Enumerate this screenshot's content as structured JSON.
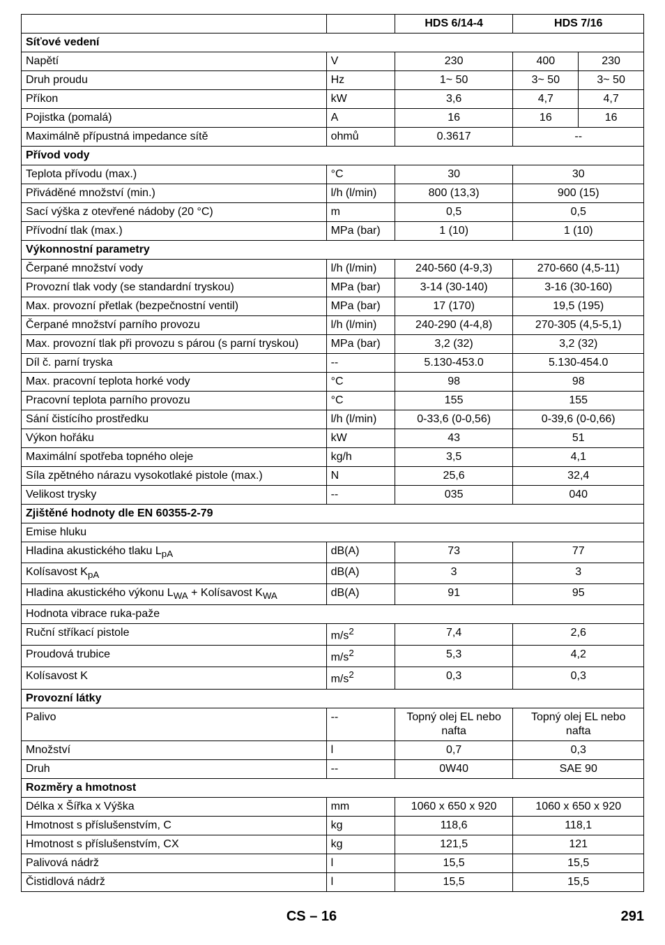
{
  "table": {
    "header": {
      "col3": "HDS 6/14-4",
      "col4": "HDS 7/16"
    },
    "sections": [
      {
        "title": "Síťové vedení",
        "rows": [
          {
            "label": "Napětí",
            "unit": "V",
            "v1": "230",
            "v2a": "400",
            "v2b": "230",
            "split": true
          },
          {
            "label": "Druh proudu",
            "unit": "Hz",
            "v1": "1~ 50",
            "v2a": "3~ 50",
            "v2b": "3~ 50",
            "split": true
          },
          {
            "label": "Příkon",
            "unit": "kW",
            "v1": "3,6",
            "v2a": "4,7",
            "v2b": "4,7",
            "split": true
          },
          {
            "label": "Pojistka (pomalá)",
            "unit": "A",
            "v1": "16",
            "v2a": "16",
            "v2b": "16",
            "split": true
          },
          {
            "label": "Maximálně přípustná impedance sítě",
            "unit": "ohmů",
            "v1": "0.3617",
            "v2": "--"
          }
        ]
      },
      {
        "title": "Přívod vody",
        "rows": [
          {
            "label": "Teplota přívodu (max.)",
            "unit": "°C",
            "v1": "30",
            "v2": "30"
          },
          {
            "label": "Přiváděné množství (min.)",
            "unit": "l/h (l/min)",
            "v1": "800 (13,3)",
            "v2": "900 (15)"
          },
          {
            "label": "Sací výška z otevřené nádoby (20 °C)",
            "unit": "m",
            "v1": "0,5",
            "v2": "0,5"
          },
          {
            "label": "Přívodní tlak (max.)",
            "unit": "MPa (bar)",
            "v1": "1 (10)",
            "v2": "1 (10)"
          }
        ]
      },
      {
        "title": "Výkonnostní parametry",
        "rows": [
          {
            "label": "Čerpané množství vody",
            "unit": "l/h (l/min)",
            "v1": "240-560 (4-9,3)",
            "v2": "270-660 (4,5-11)"
          },
          {
            "label": "Provozní tlak vody (se standardní tryskou)",
            "unit": "MPa (bar)",
            "v1": "3-14 (30-140)",
            "v2": "3-16 (30-160)"
          },
          {
            "label": "Max. provozní přetlak (bezpečnostní ventil)",
            "unit": "MPa (bar)",
            "v1": "17 (170)",
            "v2": "19,5 (195)"
          },
          {
            "label": "Čerpané množství parního provozu",
            "unit": "l/h (l/min)",
            "v1": "240-290 (4-4,8)",
            "v2": "270-305 (4,5-5,1)"
          },
          {
            "label": "Max. provozní tlak při provozu s párou (s parní tryskou)",
            "unit": "MPa (bar)",
            "v1": "3,2 (32)",
            "v2": "3,2 (32)"
          },
          {
            "label": "Díl č. parní tryska",
            "unit": "--",
            "v1": "5.130-453.0",
            "v2": "5.130-454.0"
          },
          {
            "label": "Max. pracovní teplota horké vody",
            "unit": "°C",
            "v1": "98",
            "v2": "98"
          },
          {
            "label": "Pracovní teplota parního provozu",
            "unit": "°C",
            "v1": "155",
            "v2": "155"
          },
          {
            "label": "Sání čistícího prostředku",
            "unit": "l/h (l/min)",
            "v1": "0-33,6 (0-0,56)",
            "v2": "0-39,6 (0-0,66)"
          },
          {
            "label": "Výkon hořáku",
            "unit": "kW",
            "v1": "43",
            "v2": "51"
          },
          {
            "label": "Maximální spotřeba topného oleje",
            "unit": "kg/h",
            "v1": "3,5",
            "v2": "4,1"
          },
          {
            "label": "Síla zpětného nárazu vysokotlaké pistole (max.)",
            "unit": "N",
            "v1": "25,6",
            "v2": "32,4"
          },
          {
            "label": "Velikost trysky",
            "unit": "--",
            "v1": "035",
            "v2": "040"
          }
        ]
      },
      {
        "title": "Zjištěné hodnoty dle EN 60355-2-79",
        "rows": []
      },
      {
        "title": "Emise hluku",
        "plain": true,
        "rows": [
          {
            "label": "Hladina akustického tlaku Lₐₚ",
            "label_html": "Hladina akustického tlaku L<sub>pA</sub>",
            "unit": "dB(A)",
            "v1": "73",
            "v2": "77"
          },
          {
            "label": "Kolísavost KpA",
            "label_html": "Kolísavost K<sub>pA</sub>",
            "unit": "dB(A)",
            "v1": "3",
            "v2": "3"
          },
          {
            "label": "Hladina akustického výkonu LWA + Kolísavost KWA",
            "label_html": "Hladina akustického výkonu L<sub>WA</sub> + Kolísavost K<sub>WA</sub>",
            "unit": "dB(A)",
            "v1": "91",
            "v2": "95"
          }
        ]
      },
      {
        "title": "Hodnota vibrace ruka-paže",
        "plain": true,
        "rows": [
          {
            "label": "Ruční stříkací pistole",
            "unit_html": "m/s<sup>2</sup>",
            "unit": "m/s2",
            "v1": "7,4",
            "v2": "2,6"
          },
          {
            "label": "Proudová trubice",
            "unit_html": "m/s<sup>2</sup>",
            "unit": "m/s2",
            "v1": "5,3",
            "v2": "4,2"
          },
          {
            "label": "Kolísavost K",
            "unit_html": "m/s<sup>2</sup>",
            "unit": "m/s2",
            "v1": "0,3",
            "v2": "0,3"
          }
        ]
      },
      {
        "title": "Provozní látky",
        "rows": [
          {
            "label": "Palivo",
            "unit": "--",
            "v1": "Topný olej EL nebo nafta",
            "v2": "Topný olej EL nebo nafta"
          },
          {
            "label": "Množství",
            "unit": "l",
            "v1": "0,7",
            "v2": "0,3"
          },
          {
            "label": "Druh",
            "unit": "--",
            "v1": "0W40",
            "v2": "SAE 90"
          }
        ]
      },
      {
        "title": "Rozměry a hmotnost",
        "rows": [
          {
            "label": "Délka x Šířka x Výška",
            "unit": "mm",
            "v1": "1060 x 650 x 920",
            "v2": "1060 x 650 x 920"
          },
          {
            "label": "Hmotnost s příslušenstvím, C",
            "unit": "kg",
            "v1": "118,6",
            "v2": "118,1"
          },
          {
            "label": "Hmotnost s příslušenstvím, CX",
            "unit": "kg",
            "v1": "121,5",
            "v2": "121"
          },
          {
            "label": "Palivová nádrž",
            "unit": "l",
            "v1": "15,5",
            "v2": "15,5"
          },
          {
            "label": "Čistidlová nádrž",
            "unit": "l",
            "v1": "15,5",
            "v2": "15,5"
          }
        ]
      }
    ]
  },
  "footer": {
    "left": "CS",
    "dash": "–",
    "pagein": "16",
    "pagenum": "291"
  }
}
